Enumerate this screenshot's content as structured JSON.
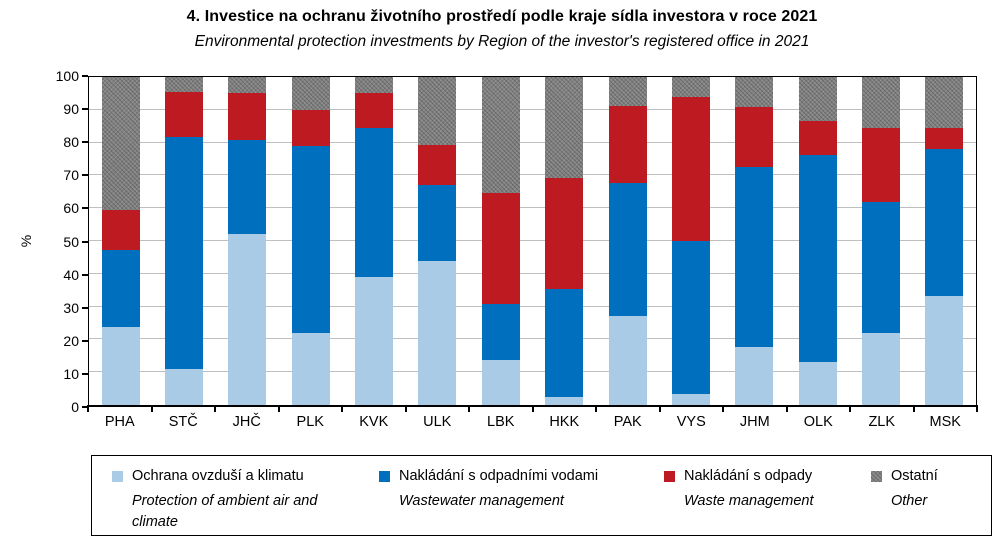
{
  "title": "4. Investice na ochranu životního prostředí podle kraje sídla investora v roce 2021",
  "subtitle": "Environmental protection investments by Region of the investor's registered office in 2021",
  "chart_data": {
    "type": "bar",
    "stacked": true,
    "normalized_to_100": true,
    "title": "4. Investice na ochranu životního prostředí podle kraje sídla investora v roce 2021",
    "subtitle_en": "Environmental protection investments by Region of the investor's registered office in 2021",
    "xlabel": "",
    "ylabel": "%",
    "ylim": [
      0,
      100
    ],
    "y_ticks": [
      0,
      10,
      20,
      30,
      40,
      50,
      60,
      70,
      80,
      90,
      100
    ],
    "grid": "horizontal",
    "gridline_color": "#BFBFBF",
    "legend_position": "bottom",
    "categories": [
      "PHA",
      "STČ",
      "JHČ",
      "PLK",
      "KVK",
      "ULK",
      "LBK",
      "HKK",
      "PAK",
      "VYS",
      "JHM",
      "OLK",
      "ZLK",
      "MSK"
    ],
    "series": [
      {
        "key": "air",
        "label_cz": "Ochrana ovzduší a klimatu",
        "label_en": "Protection of ambient air and climate",
        "color": "#A9CBE6",
        "pattern": false,
        "values": [
          23.7,
          11.1,
          52.2,
          21.8,
          39.0,
          43.9,
          13.7,
          2.3,
          27.1,
          3.5,
          17.8,
          13.1,
          22.0,
          33.1
        ]
      },
      {
        "key": "wastewater",
        "label_cz": "Nakládání s odpadními vodami",
        "label_en": "Wastewater management",
        "color": "#0070BE",
        "pattern": false,
        "values": [
          23.7,
          70.7,
          28.5,
          57.3,
          45.6,
          23.2,
          17.2,
          33.1,
          40.6,
          46.4,
          54.7,
          63.0,
          39.9,
          44.9
        ]
      },
      {
        "key": "waste",
        "label_cz": "Nakládání s odpady",
        "label_en": "Waste management",
        "color": "#BE1A22",
        "pattern": false,
        "values": [
          12.0,
          13.7,
          14.3,
          10.9,
          10.4,
          12.1,
          33.6,
          33.7,
          23.5,
          43.9,
          18.3,
          10.4,
          22.6,
          6.3
        ]
      },
      {
        "key": "other",
        "label_cz": "Ostatní",
        "label_en": "Other",
        "color": "#818181",
        "pattern": true,
        "values": [
          40.6,
          4.5,
          5.0,
          10.0,
          5.0,
          20.8,
          35.5,
          30.9,
          8.8,
          6.2,
          9.2,
          13.5,
          15.5,
          15.7
        ]
      }
    ]
  }
}
